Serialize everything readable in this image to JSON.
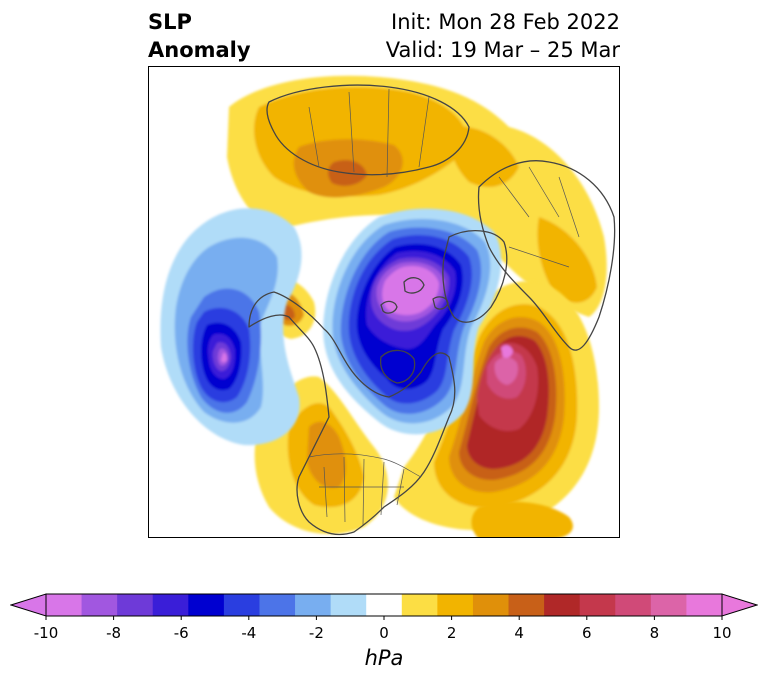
{
  "title": {
    "left_line1": "SLP",
    "left_line2": "Anomaly",
    "right_line1": "Init: Mon 28 Feb 2022",
    "right_line2": "Valid: 19 Mar – 25 Mar"
  },
  "map": {
    "projection": "north-polar-stereographic",
    "features": [
      "coastlines",
      "country-borders",
      "us-state-borders"
    ],
    "anomalies": [
      {
        "name": "arctic-low",
        "region": "Arctic Ocean",
        "sign": "negative",
        "peak_hpa": -10
      },
      {
        "name": "north-pacific-low",
        "region": "North Pacific",
        "sign": "negative",
        "peak_hpa": -10
      },
      {
        "name": "north-atlantic-high",
        "region": "North Atlantic",
        "sign": "positive",
        "peak_hpa": 10
      },
      {
        "name": "eurasia-high",
        "region": "Siberia / Eurasia",
        "sign": "positive",
        "peak_hpa": 6
      },
      {
        "name": "north-america-high",
        "region": "Western North America",
        "sign": "positive",
        "peak_hpa": 4
      }
    ]
  },
  "colorbar": {
    "unit": "hPa",
    "levels": [
      -10,
      -9,
      -8,
      -7,
      -6,
      -5,
      -4,
      -3,
      -2,
      -1,
      1,
      2,
      3,
      4,
      5,
      6,
      7,
      8,
      9,
      10
    ],
    "colors": [
      "#d876e8",
      "#a157e0",
      "#6e3ad8",
      "#3a1ed8",
      "#0000d0",
      "#2a3ee0",
      "#4c74e8",
      "#78aef0",
      "#b0dcf8",
      "#ffffff",
      "#fcde44",
      "#f2b400",
      "#e0900a",
      "#c86018",
      "#b02828",
      "#c4384c",
      "#d04a78",
      "#dc64a8",
      "#e878dc"
    ],
    "extend": "both",
    "tick_labels": [
      "-10",
      "-8",
      "-6",
      "-4",
      "-2",
      "0",
      "2",
      "4",
      "6",
      "8",
      "10"
    ]
  }
}
